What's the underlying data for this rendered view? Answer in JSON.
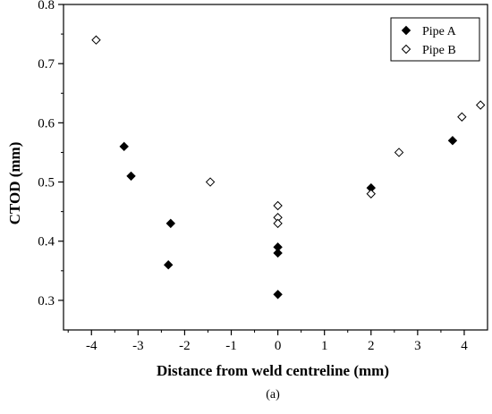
{
  "chart_data": {
    "type": "scatter",
    "title": "",
    "xlabel": "Distance from weld centreline (mm)",
    "ylabel": "CTOD (mm)",
    "caption": "(a)",
    "xlim": [
      -4.6,
      4.5
    ],
    "ylim": [
      0.25,
      0.8
    ],
    "xticks": [
      -4,
      -3,
      -2,
      -1,
      0,
      1,
      2,
      3,
      4
    ],
    "yticks": [
      0.3,
      0.4,
      0.5,
      0.6,
      0.7,
      0.8
    ],
    "grid": false,
    "legend_position": "top-right",
    "series": [
      {
        "name": "Pipe A",
        "marker": "filled-diamond",
        "color": "#000000",
        "points": [
          {
            "x": -3.3,
            "y": 0.56
          },
          {
            "x": -3.15,
            "y": 0.51
          },
          {
            "x": -2.3,
            "y": 0.43
          },
          {
            "x": -2.35,
            "y": 0.36
          },
          {
            "x": 0.0,
            "y": 0.39
          },
          {
            "x": 0.0,
            "y": 0.38
          },
          {
            "x": 0.0,
            "y": 0.31
          },
          {
            "x": 2.0,
            "y": 0.49
          },
          {
            "x": 3.75,
            "y": 0.57
          }
        ]
      },
      {
        "name": "Pipe B",
        "marker": "open-diamond",
        "color": "#000000",
        "points": [
          {
            "x": -3.9,
            "y": 0.74
          },
          {
            "x": -1.45,
            "y": 0.5
          },
          {
            "x": 0.0,
            "y": 0.46
          },
          {
            "x": 0.0,
            "y": 0.44
          },
          {
            "x": 0.0,
            "y": 0.43
          },
          {
            "x": 2.0,
            "y": 0.48
          },
          {
            "x": 2.6,
            "y": 0.55
          },
          {
            "x": 3.95,
            "y": 0.61
          },
          {
            "x": 4.35,
            "y": 0.63
          }
        ]
      }
    ]
  }
}
